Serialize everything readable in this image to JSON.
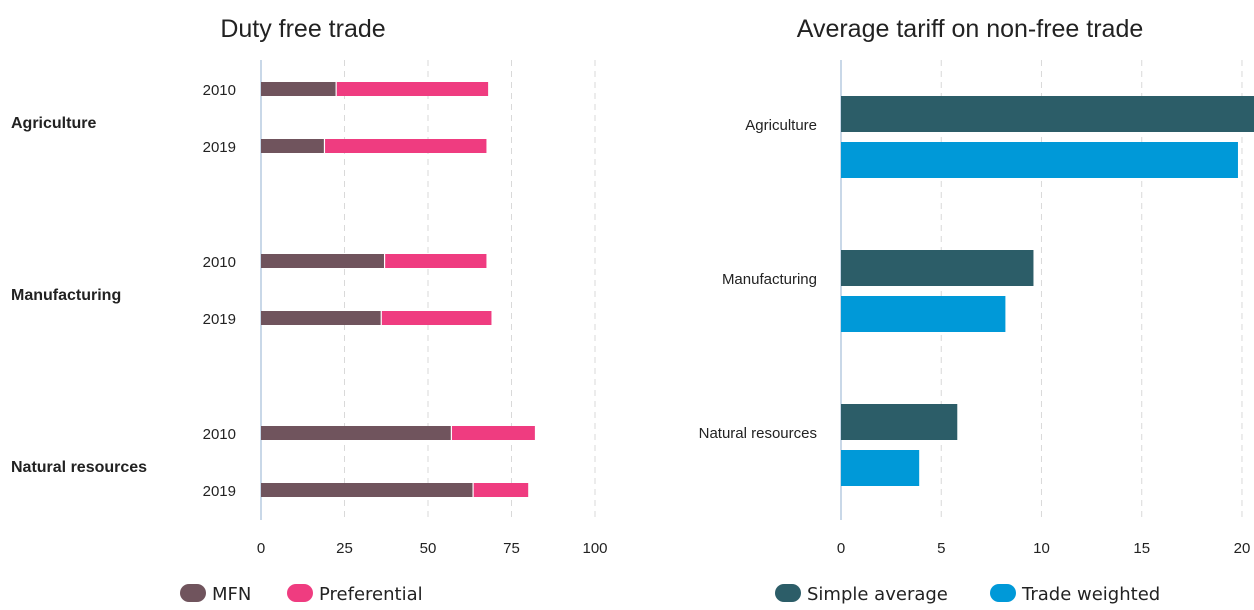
{
  "chart_data": [
    {
      "type": "bar",
      "orientation": "horizontal",
      "stacked": true,
      "title": "Duty free trade",
      "groups": [
        "Agriculture",
        "Manufacturing",
        "Natural resources"
      ],
      "categories": [
        "2010",
        "2019"
      ],
      "xlim": [
        0,
        100
      ],
      "xticks": [
        "0",
        "25",
        "50",
        "75",
        "100"
      ],
      "grid": true,
      "legend_position": "bottom",
      "series": [
        {
          "name": "MFN",
          "color": "#70545d",
          "values": [
            [
              22.5,
              19
            ],
            [
              37,
              36
            ],
            [
              57,
              63.5
            ]
          ]
        },
        {
          "name": "Preferential",
          "color": "#ef3c80",
          "values": [
            [
              45.5,
              48.5
            ],
            [
              30.5,
              33
            ],
            [
              25,
              16.5
            ]
          ]
        }
      ]
    },
    {
      "type": "bar",
      "orientation": "horizontal",
      "title": "Average tariff on non-free trade",
      "categories": [
        "Agriculture",
        "Manufacturing",
        "Natural resources"
      ],
      "xlim": [
        0,
        20.6
      ],
      "xticks": [
        "0",
        "5",
        "10",
        "15",
        "20"
      ],
      "grid": true,
      "legend_position": "bottom",
      "series": [
        {
          "name": "Simple average",
          "color": "#2c5d68",
          "values": [
            20.8,
            9.6,
            5.8
          ]
        },
        {
          "name": "Trade weighted",
          "color": "#0099d8",
          "values": [
            19.8,
            8.2,
            3.9
          ]
        }
      ]
    }
  ]
}
